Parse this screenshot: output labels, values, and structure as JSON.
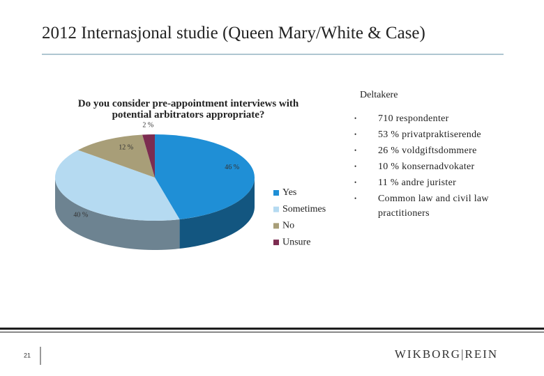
{
  "slide": {
    "title": "2012 Internasjonal studie (Queen Mary/White & Case)",
    "heading": "Deltakere",
    "bullets": [
      "710 respondenter",
      "53 % privatpraktiserende",
      "26 % voldgiftsdommere",
      "10 % konsernadvokater",
      "11 % andre jurister",
      "Common law and civil law practitioners"
    ],
    "page_number": "21",
    "logo": "WIKBORG|REIN"
  },
  "chart_data": {
    "type": "pie",
    "title": "Do you consider pre-appointment interviews with potential arbitrators appropriate?",
    "categories": [
      "Yes",
      "Sometimes",
      "No",
      "Unsure"
    ],
    "values": [
      46,
      40,
      12,
      2
    ],
    "value_labels": [
      "46 %",
      "40 %",
      "12 %",
      "2 %"
    ],
    "colors": [
      "#1f8fd6",
      "#b5daf1",
      "#a89e78",
      "#7c2c50"
    ],
    "legend": "right"
  }
}
